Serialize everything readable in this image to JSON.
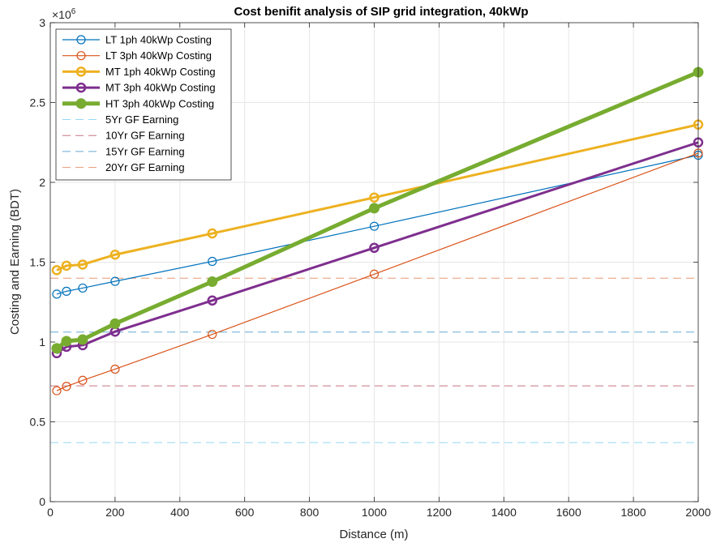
{
  "chart_data": {
    "type": "line",
    "title": "Cost benifit analysis of SIP grid integration, 40kWp",
    "xlabel": "Distance (m)",
    "ylabel": "Costing and Earning (BDT)",
    "exponent_label": "×10",
    "exponent_power": "6",
    "xlim": [
      0,
      2000
    ],
    "ylim": [
      0,
      3000000
    ],
    "x_ticks": [
      0,
      200,
      400,
      600,
      800,
      1000,
      1200,
      1400,
      1600,
      1800,
      2000
    ],
    "y_ticks": [
      0,
      500000,
      1000000,
      1500000,
      2000000,
      2500000,
      3000000
    ],
    "y_tick_labels": [
      "0",
      "0.5",
      "1",
      "1.5",
      "2",
      "2.5",
      "3"
    ],
    "grid": true,
    "legend_position": "top-left",
    "x": [
      20,
      50,
      100,
      200,
      500,
      1000,
      2000
    ],
    "series": [
      {
        "name": "LT 1ph 40kWp Costing",
        "color": "#0072BD",
        "width": 1.2,
        "marker": "circle",
        "markersize": 5,
        "values": [
          1300000,
          1318000,
          1338000,
          1380000,
          1505000,
          1725000,
          2170000
        ]
      },
      {
        "name": "LT 3ph 40kWp Costing",
        "color": "#D95319",
        "width": 1.2,
        "marker": "circle",
        "markersize": 5,
        "values": [
          695000,
          722000,
          760000,
          830000,
          1048000,
          1425000,
          2183000
        ]
      },
      {
        "name": "MT 1ph 40kWp Costing",
        "color": "#EDB120",
        "width": 3,
        "marker": "circle",
        "markersize": 5,
        "values": [
          1450000,
          1478000,
          1485000,
          1547000,
          1680000,
          1905000,
          2362000
        ]
      },
      {
        "name": "MT 3ph 40kWp Costing",
        "color": "#7E2F8E",
        "width": 3,
        "marker": "circle",
        "markersize": 5,
        "values": [
          930000,
          970000,
          980000,
          1065000,
          1260000,
          1590000,
          2250000
        ]
      },
      {
        "name": "HT 3ph 40kWp Costing",
        "color": "#77AC30",
        "width": 5,
        "marker": "circle-filled",
        "markersize": 6,
        "values": [
          960000,
          1005000,
          1015000,
          1115000,
          1378000,
          1838000,
          2690000
        ]
      }
    ],
    "reference_lines": [
      {
        "name": "5Yr GF Earning",
        "color": "#4DBEEE",
        "value": 370000
      },
      {
        "name": "10Yr GF Earning",
        "color": "#A2142F",
        "value": 725000
      },
      {
        "name": "15Yr GF Earning",
        "color": "#0072BD",
        "value": 1062000
      },
      {
        "name": "20Yr GF Earning",
        "color": "#D95319",
        "value": 1400000
      }
    ]
  }
}
